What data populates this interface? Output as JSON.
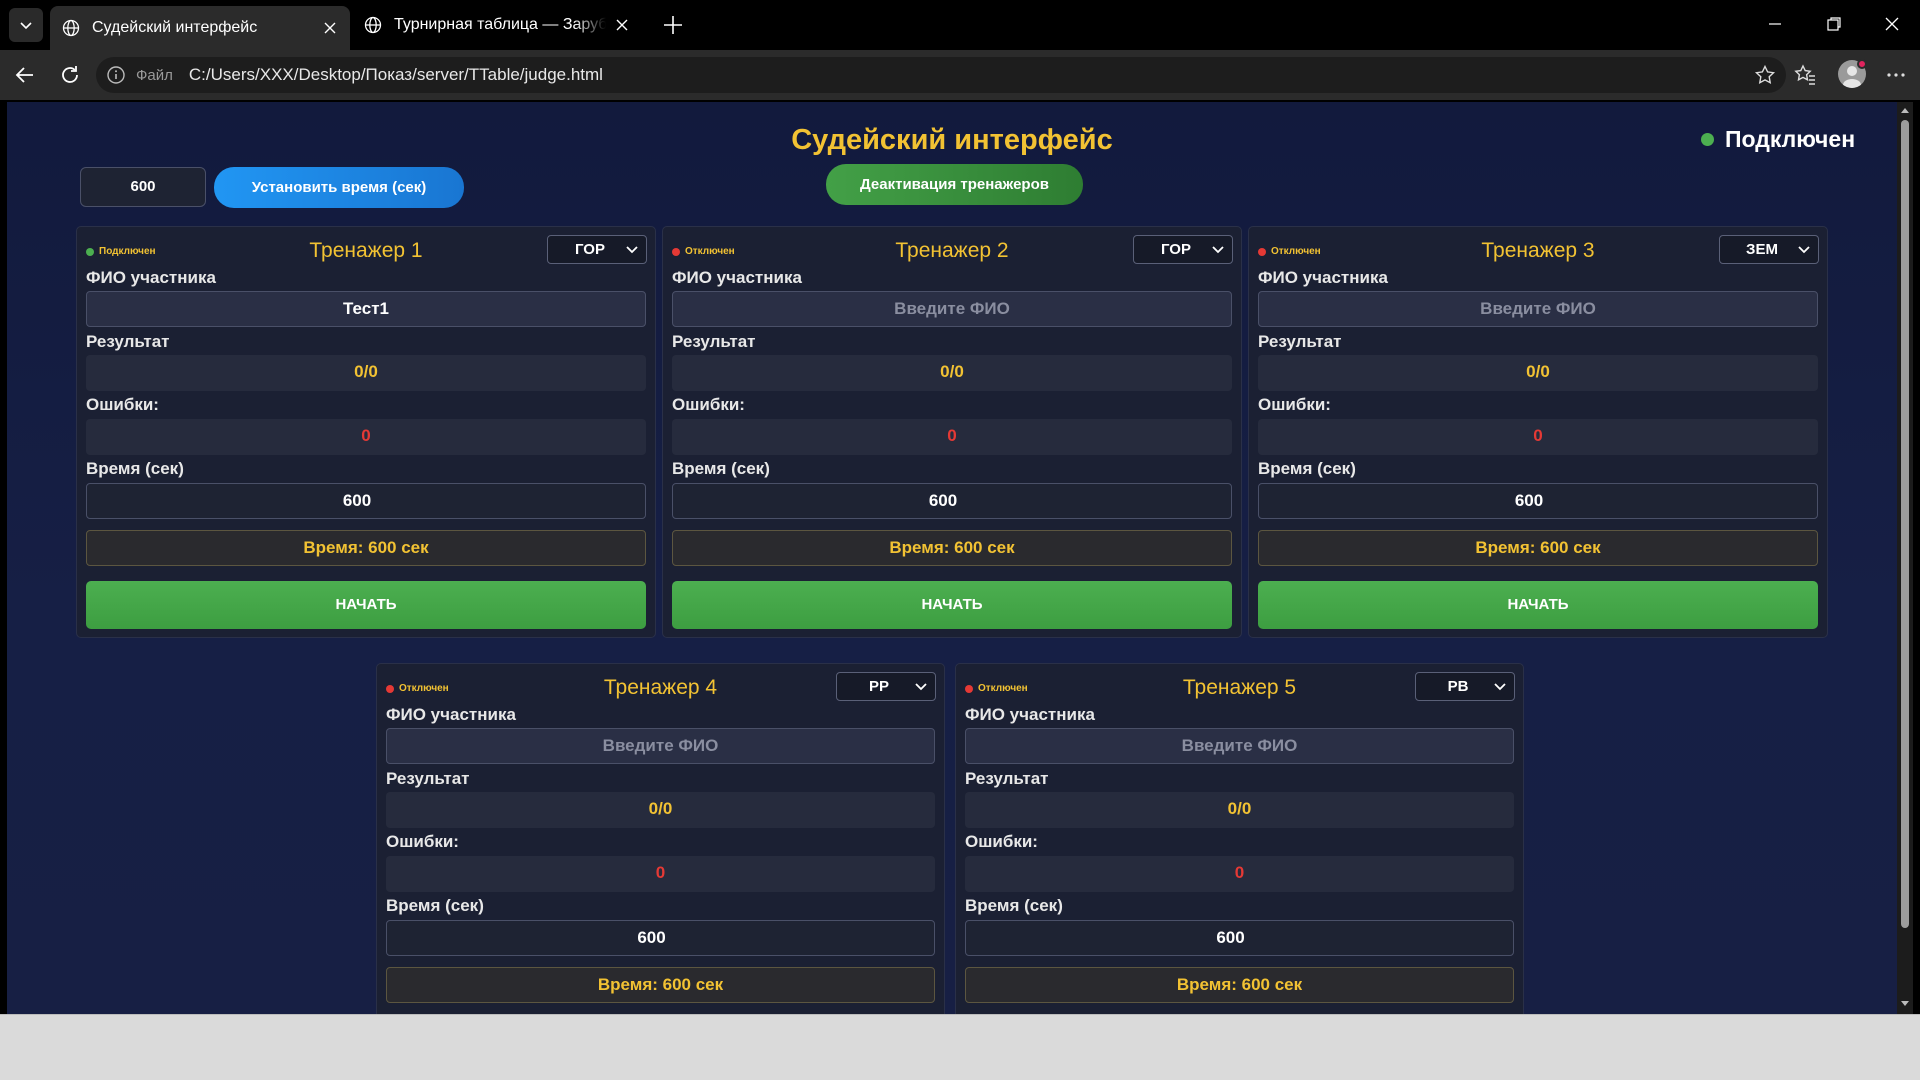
{
  "browser": {
    "tabs": [
      {
        "title": "Судейский интерфейс",
        "active": true
      },
      {
        "title": "Турнирная таблица — Зарубежные",
        "active": false
      }
    ],
    "url_scheme": "Файл",
    "url": "C:/Users/XXX/Desktop/Показ/server/TTable/judge.html"
  },
  "page": {
    "title": "Судейский интерфейс",
    "connection_status": "Подключен",
    "time_input_value": "600",
    "set_time_label": "Установить время (сек)",
    "deactivate_label": "Деактивация тренажеров"
  },
  "labels": {
    "fio": "ФИО участника",
    "result": "Результат",
    "errors": "Ошибки:",
    "time": "Время (сек)",
    "start": "НАЧАТЬ",
    "fio_placeholder": "Введите ФИО"
  },
  "trainers": [
    {
      "name": "Тренажер 1",
      "status": "Подключен",
      "mode": "ГОР",
      "fio": "Тест1",
      "result": "0/0",
      "errors": "0",
      "time": "600",
      "timer": "Время: 600 сек"
    },
    {
      "name": "Тренажер 2",
      "status": "Отключен",
      "mode": "ГОР",
      "fio": "",
      "result": "0/0",
      "errors": "0",
      "time": "600",
      "timer": "Время: 600 сек"
    },
    {
      "name": "Тренажер 3",
      "status": "Отключен",
      "mode": "ЗЕМ",
      "fio": "",
      "result": "0/0",
      "errors": "0",
      "time": "600",
      "timer": "Время: 600 сек"
    },
    {
      "name": "Тренажер 4",
      "status": "Отключен",
      "mode": "РР",
      "fio": "",
      "result": "0/0",
      "errors": "0",
      "time": "600",
      "timer": "Время: 600 сек"
    },
    {
      "name": "Тренажер 5",
      "status": "Отключен",
      "mode": "РВ",
      "fio": "",
      "result": "0/0",
      "errors": "0",
      "time": "600",
      "timer": "Время: 600 сек"
    }
  ],
  "colors": {
    "accent": "#f2c233",
    "connected": "#4caf50",
    "disconnected": "#e53935",
    "primary_button": "#2196f3",
    "success_button": "#43a047"
  },
  "icons": [
    "tab-list-icon",
    "globe-icon",
    "close-icon",
    "plus-icon",
    "minimize-icon",
    "restore-icon",
    "back-icon",
    "reload-icon",
    "info-icon",
    "star-icon",
    "favorites-icon",
    "profile-icon",
    "more-icon",
    "chevron-down-icon"
  ]
}
